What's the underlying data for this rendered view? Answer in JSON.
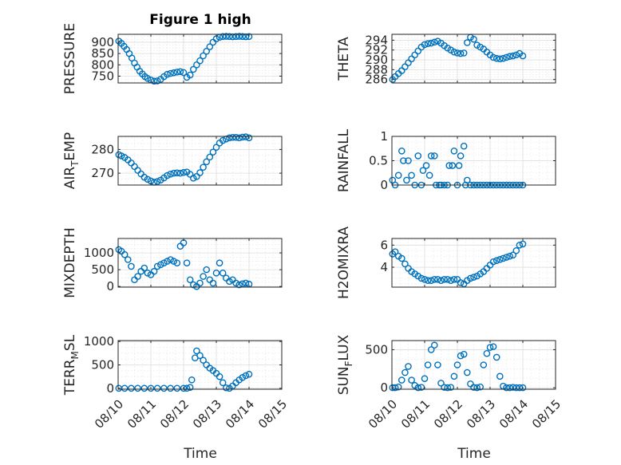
{
  "figure": {
    "title": "Figure 1 high",
    "xlabel": "Time",
    "x_tick_labels": [
      "08/10",
      "08/11",
      "08/12",
      "08/13",
      "08/14",
      "08/15"
    ],
    "marker_color": "#0072BD"
  },
  "chart_data": [
    {
      "type": "scatter",
      "ylabel": "PRESSURE",
      "xlim": [
        0,
        5
      ],
      "ylim": [
        720,
        935
      ],
      "yticks": [
        750,
        800,
        850,
        900
      ],
      "ytick_labels": [
        "750",
        "800",
        "850",
        "900"
      ],
      "x": [
        0.02,
        0.1,
        0.18,
        0.26,
        0.34,
        0.42,
        0.5,
        0.58,
        0.66,
        0.74,
        0.82,
        0.9,
        1.0,
        1.1,
        1.2,
        1.3,
        1.4,
        1.5,
        1.6,
        1.7,
        1.8,
        1.9,
        2.0,
        2.1,
        2.2,
        2.3,
        2.4,
        2.5,
        2.6,
        2.7,
        2.8,
        2.9,
        3.0,
        3.1,
        3.2,
        3.3,
        3.4,
        3.5,
        3.6,
        3.7,
        3.8,
        3.9,
        4.0
      ],
      "y": [
        905,
        895,
        882,
        868,
        850,
        830,
        808,
        790,
        772,
        760,
        748,
        740,
        733,
        728,
        729,
        736,
        748,
        758,
        762,
        765,
        768,
        770,
        766,
        745,
        755,
        780,
        800,
        818,
        840,
        860,
        880,
        900,
        915,
        922,
        925,
        926,
        925,
        924,
        925,
        926,
        925,
        924,
        925
      ]
    },
    {
      "type": "scatter",
      "ylabel": "THETA",
      "xlim": [
        0,
        5
      ],
      "ylim": [
        285.3,
        295.2
      ],
      "yticks": [
        286,
        288,
        290,
        292,
        294
      ],
      "ytick_labels": [
        "286",
        "288",
        "290",
        "292",
        "294"
      ],
      "x": [
        0.02,
        0.1,
        0.2,
        0.3,
        0.4,
        0.5,
        0.6,
        0.7,
        0.8,
        0.9,
        1.0,
        1.1,
        1.2,
        1.3,
        1.4,
        1.5,
        1.6,
        1.7,
        1.8,
        1.9,
        2.0,
        2.1,
        2.2,
        2.3,
        2.4,
        2.5,
        2.6,
        2.7,
        2.8,
        2.9,
        3.0,
        3.1,
        3.2,
        3.3,
        3.4,
        3.5,
        3.6,
        3.7,
        3.8,
        3.9,
        4.0
      ],
      "y": [
        286.0,
        286.6,
        287.2,
        287.8,
        288.6,
        289.4,
        290.2,
        291.0,
        291.8,
        292.6,
        293.1,
        293.3,
        293.4,
        293.6,
        293.8,
        293.4,
        292.9,
        292.4,
        292.0,
        291.6,
        291.4,
        291.3,
        291.4,
        293.5,
        294.6,
        294.2,
        293.0,
        292.6,
        292.2,
        291.6,
        291.0,
        290.5,
        290.3,
        290.2,
        290.3,
        290.5,
        290.7,
        290.8,
        291.0,
        291.3,
        290.8
      ]
    },
    {
      "type": "scatter",
      "ylabel": "AIR_TEMP",
      "xlim": [
        0,
        5
      ],
      "ylim": [
        265,
        285.5
      ],
      "yticks": [
        270,
        280
      ],
      "ytick_labels": [
        "270",
        "280"
      ],
      "x": [
        0.02,
        0.1,
        0.2,
        0.3,
        0.4,
        0.5,
        0.6,
        0.7,
        0.8,
        0.9,
        1.0,
        1.1,
        1.2,
        1.3,
        1.4,
        1.5,
        1.6,
        1.7,
        1.8,
        1.9,
        2.0,
        2.1,
        2.2,
        2.3,
        2.4,
        2.5,
        2.6,
        2.7,
        2.8,
        2.9,
        3.0,
        3.1,
        3.2,
        3.3,
        3.4,
        3.5,
        3.6,
        3.7,
        3.8,
        3.9,
        4.0
      ],
      "y": [
        277.8,
        277.3,
        276.6,
        275.6,
        274.3,
        272.8,
        271.2,
        269.7,
        268.3,
        267.4,
        266.7,
        266.2,
        266.5,
        267.1,
        268.0,
        269.0,
        269.6,
        270.0,
        270.1,
        270.0,
        270.3,
        270.5,
        269.5,
        267.9,
        268.6,
        270.2,
        272.5,
        274.8,
        276.8,
        278.9,
        280.9,
        282.7,
        283.8,
        284.4,
        284.9,
        285.1,
        285.1,
        284.9,
        285.2,
        285.3,
        284.9
      ]
    },
    {
      "type": "scatter",
      "ylabel": "RAINFALL",
      "xlim": [
        0,
        5
      ],
      "ylim": [
        0,
        1
      ],
      "yticks": [
        0,
        0.5,
        1
      ],
      "ytick_labels": [
        "0",
        "0.5",
        "1"
      ],
      "x": [
        0.02,
        0.1,
        0.2,
        0.3,
        0.35,
        0.45,
        0.5,
        0.6,
        0.7,
        0.8,
        0.9,
        0.95,
        1.05,
        1.15,
        1.2,
        1.3,
        1.35,
        1.45,
        1.5,
        1.6,
        1.7,
        1.75,
        1.85,
        1.9,
        2.0,
        2.05,
        2.1,
        2.2,
        2.25,
        2.3,
        2.4,
        2.5,
        2.6,
        2.7,
        2.8,
        2.9,
        3.0,
        3.1,
        3.2,
        3.3,
        3.4,
        3.5,
        3.6,
        3.7,
        3.8,
        3.9,
        4.0
      ],
      "y": [
        0.1,
        0.0,
        0.2,
        0.7,
        0.5,
        0.1,
        0.5,
        0.2,
        0.0,
        0.6,
        0.0,
        0.3,
        0.4,
        0.2,
        0.6,
        0.6,
        0.0,
        0.0,
        0.0,
        0.0,
        0.0,
        0.4,
        0.4,
        0.7,
        0.0,
        0.4,
        0.6,
        0.8,
        0.0,
        0.1,
        0.0,
        0.0,
        0.0,
        0.0,
        0.0,
        0.0,
        0.0,
        0.0,
        0.0,
        0.0,
        0.0,
        0.0,
        0.0,
        0.0,
        0.0,
        0.0,
        0.0
      ]
    },
    {
      "type": "scatter",
      "ylabel": "MIXDEPTH",
      "xlim": [
        0,
        5
      ],
      "ylim": [
        -20,
        1430
      ],
      "yticks": [
        0,
        500,
        1000
      ],
      "ytick_labels": [
        "0",
        "500",
        "1000"
      ],
      "x": [
        0.02,
        0.1,
        0.2,
        0.3,
        0.4,
        0.5,
        0.6,
        0.7,
        0.8,
        0.9,
        1.0,
        1.1,
        1.2,
        1.3,
        1.4,
        1.5,
        1.6,
        1.7,
        1.8,
        1.9,
        2.0,
        2.1,
        2.2,
        2.3,
        2.4,
        2.5,
        2.6,
        2.7,
        2.8,
        2.9,
        3.0,
        3.1,
        3.2,
        3.3,
        3.4,
        3.5,
        3.6,
        3.7,
        3.8,
        3.9,
        4.0
      ],
      "y": [
        1100,
        1050,
        950,
        800,
        600,
        200,
        300,
        450,
        550,
        400,
        350,
        450,
        600,
        650,
        700,
        750,
        800,
        750,
        700,
        1200,
        1300,
        700,
        200,
        50,
        0,
        100,
        300,
        500,
        200,
        100,
        400,
        700,
        400,
        250,
        150,
        200,
        100,
        50,
        80,
        100,
        70
      ]
    },
    {
      "type": "scatter",
      "ylabel": "H2OMIXRA",
      "xlim": [
        0,
        5
      ],
      "ylim": [
        2.2,
        6.6
      ],
      "yticks": [
        4,
        6
      ],
      "ytick_labels": [
        "4",
        "6"
      ],
      "x": [
        0.02,
        0.1,
        0.2,
        0.3,
        0.4,
        0.5,
        0.6,
        0.7,
        0.8,
        0.9,
        1.0,
        1.1,
        1.2,
        1.3,
        1.4,
        1.5,
        1.6,
        1.7,
        1.8,
        1.9,
        2.0,
        2.1,
        2.2,
        2.3,
        2.4,
        2.5,
        2.6,
        2.7,
        2.8,
        2.9,
        3.0,
        3.1,
        3.2,
        3.3,
        3.4,
        3.5,
        3.6,
        3.7,
        3.8,
        3.9,
        4.0
      ],
      "y": [
        5.2,
        5.4,
        5.0,
        4.8,
        4.3,
        3.9,
        3.6,
        3.4,
        3.2,
        3.0,
        2.9,
        2.8,
        2.8,
        2.9,
        2.9,
        2.8,
        2.9,
        2.9,
        2.8,
        2.9,
        2.9,
        2.6,
        2.5,
        2.8,
        3.0,
        3.1,
        3.2,
        3.4,
        3.6,
        3.9,
        4.2,
        4.5,
        4.6,
        4.7,
        4.8,
        4.9,
        5.0,
        5.1,
        5.5,
        6.0,
        6.1
      ]
    },
    {
      "type": "scatter",
      "ylabel": "TERR_MSL",
      "xlim": [
        0,
        5
      ],
      "ylim": [
        -20,
        1020
      ],
      "yticks": [
        0,
        500,
        1000
      ],
      "ytick_labels": [
        "0",
        "500",
        "1000"
      ],
      "x": [
        0.02,
        0.2,
        0.4,
        0.6,
        0.8,
        1.0,
        1.2,
        1.4,
        1.6,
        1.8,
        2.0,
        2.1,
        2.2,
        2.25,
        2.35,
        2.4,
        2.5,
        2.6,
        2.7,
        2.8,
        2.9,
        3.0,
        3.1,
        3.2,
        3.3,
        3.4,
        3.5,
        3.6,
        3.7,
        3.8,
        3.9,
        4.0
      ],
      "y": [
        0,
        0,
        0,
        0,
        0,
        0,
        0,
        0,
        0,
        0,
        0,
        0,
        20,
        180,
        650,
        800,
        700,
        600,
        500,
        430,
        380,
        320,
        250,
        120,
        10,
        0,
        50,
        120,
        180,
        230,
        270,
        300
      ]
    },
    {
      "type": "scatter",
      "ylabel": "SUN_FLUX",
      "xlim": [
        0,
        5
      ],
      "ylim": [
        -20,
        620
      ],
      "yticks": [
        0,
        500
      ],
      "ytick_labels": [
        "0",
        "500"
      ],
      "x": [
        0.02,
        0.1,
        0.2,
        0.3,
        0.4,
        0.5,
        0.6,
        0.7,
        0.8,
        0.9,
        1.0,
        1.1,
        1.2,
        1.3,
        1.4,
        1.5,
        1.6,
        1.7,
        1.8,
        1.9,
        2.0,
        2.1,
        2.2,
        2.3,
        2.4,
        2.5,
        2.6,
        2.7,
        2.8,
        2.9,
        3.0,
        3.1,
        3.2,
        3.3,
        3.4,
        3.5,
        3.6,
        3.7,
        3.8,
        3.9,
        4.0
      ],
      "y": [
        0,
        0,
        10,
        100,
        200,
        280,
        100,
        30,
        0,
        5,
        120,
        300,
        500,
        560,
        300,
        60,
        5,
        0,
        5,
        150,
        300,
        420,
        440,
        200,
        50,
        5,
        0,
        10,
        300,
        450,
        530,
        540,
        400,
        150,
        20,
        0,
        0,
        5,
        0,
        0,
        0
      ]
    }
  ]
}
